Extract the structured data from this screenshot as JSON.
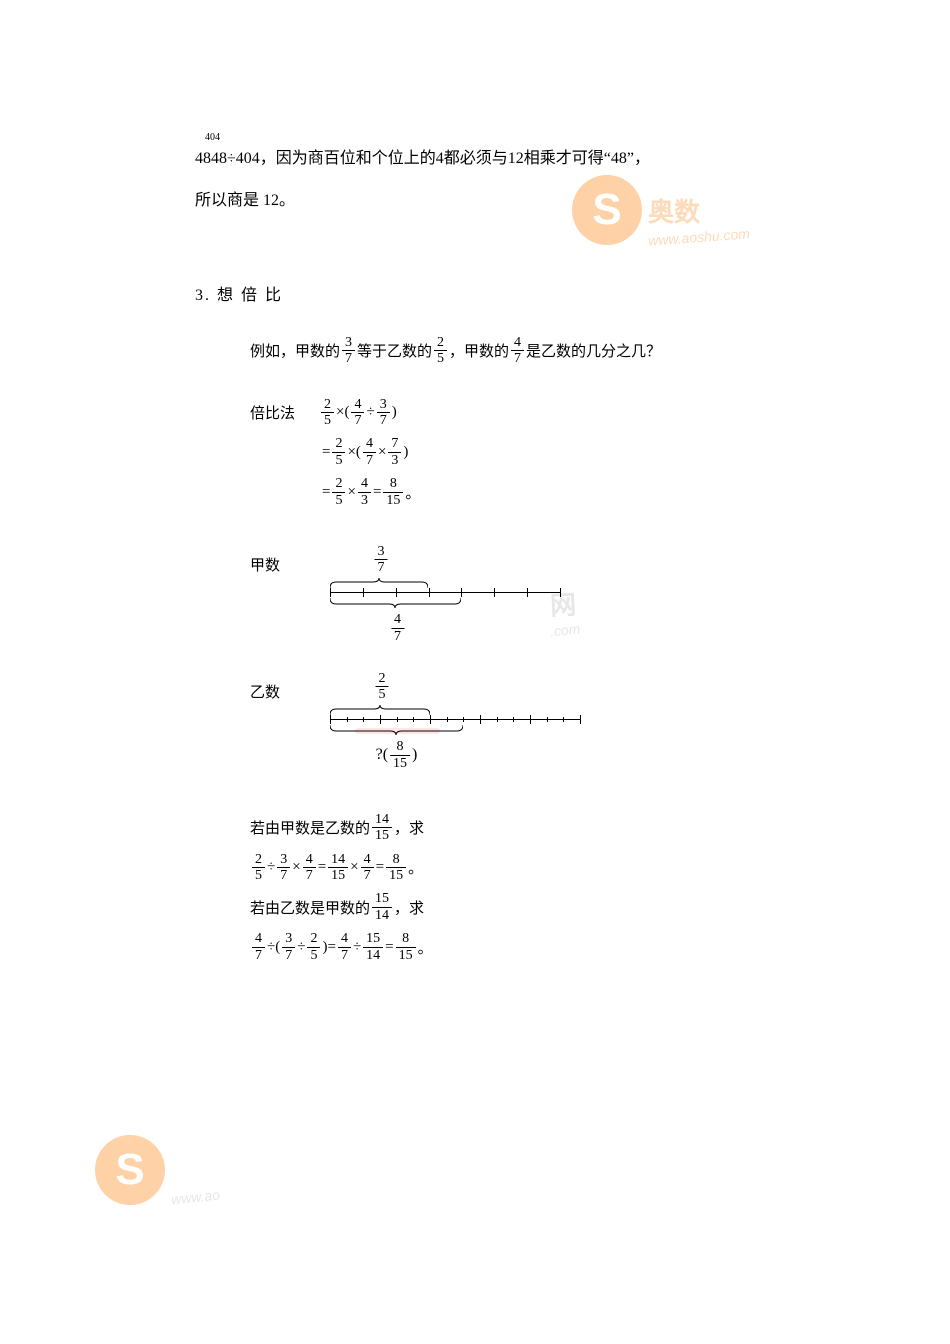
{
  "colors": {
    "text": "#000000",
    "bg": "#ffffff",
    "wm_orange": "#ffa54f",
    "wm_orange_text": "#f8b878",
    "wm_gray": "#d0d0d0",
    "underline_pink": "#ffc0c0"
  },
  "intro": {
    "sup": "404",
    "line1_a": "4848÷404，因为商百位和个位上的4都必须与12相乘才可得“48”，",
    "line2": "所以商是 12。"
  },
  "section": {
    "title": "3. 想 倍 比"
  },
  "example": {
    "prefix": "例如，甲数的",
    "f1": {
      "n": "3",
      "d": "7"
    },
    "mid1": "等于乙数的",
    "f2": {
      "n": "2",
      "d": "5"
    },
    "mid2": "，甲数的",
    "f3": {
      "n": "4",
      "d": "7"
    },
    "suffix": "是乙数的几分之几？"
  },
  "calc": {
    "label": "倍比法",
    "s1": {
      "a": {
        "n": "2",
        "d": "5"
      },
      "op1": "×(",
      "b": {
        "n": "4",
        "d": "7"
      },
      "op2": "÷",
      "c": {
        "n": "3",
        "d": "7"
      },
      "close": ")"
    },
    "s2": {
      "eq": "= ",
      "a": {
        "n": "2",
        "d": "5"
      },
      "op1": "×(",
      "b": {
        "n": "4",
        "d": "7"
      },
      "op2": "×",
      "c": {
        "n": "7",
        "d": "3"
      },
      "close": ")"
    },
    "s3": {
      "eq": "= ",
      "a": {
        "n": "2",
        "d": "5"
      },
      "op1": "×",
      "b": {
        "n": "4",
        "d": "3"
      },
      "op2": "= ",
      "c": {
        "n": "8",
        "d": "15"
      },
      "period": "。"
    }
  },
  "diag_jia": {
    "label": "甲数",
    "top_frac": {
      "n": "3",
      "d": "7"
    },
    "bot_frac": {
      "n": "4",
      "d": "7"
    },
    "ticks": 8,
    "total_width": 230,
    "top_span_ticks": 3,
    "bot_span_ticks": 4
  },
  "diag_yi": {
    "label": "乙数",
    "top_frac": {
      "n": "2",
      "d": "5"
    },
    "bot_prefix": "?(",
    "bot_frac": {
      "n": "8",
      "d": "15"
    },
    "bot_suffix": ")",
    "ticks_main": 6,
    "ticks_minor": 16,
    "total_width": 250,
    "top_span_ticks": 2,
    "bot_span_minor": 8
  },
  "alt": {
    "l1_a": "若由甲数是乙数的",
    "l1_f": {
      "n": "14",
      "d": "15"
    },
    "l1_b": "，求",
    "l2": {
      "a": {
        "n": "2",
        "d": "5"
      },
      "op1": "÷",
      "b": {
        "n": "3",
        "d": "7"
      },
      "op2": "×",
      "c": {
        "n": "4",
        "d": "7"
      },
      "eq1": "= ",
      "d": {
        "n": "14",
        "d": "15"
      },
      "op3": "×",
      "e": {
        "n": "4",
        "d": "7"
      },
      "eq2": "= ",
      "f": {
        "n": "8",
        "d": "15"
      },
      "p": "。"
    },
    "l3_a": "若由乙数是甲数的",
    "l3_f": {
      "n": "15",
      "d": "14"
    },
    "l3_b": "，求",
    "l4": {
      "a": {
        "n": "4",
        "d": "7"
      },
      "op1": "÷(",
      "b": {
        "n": "3",
        "d": "7"
      },
      "op2": "÷",
      "c": {
        "n": "2",
        "d": "5"
      },
      "close": ") ",
      "eq1": "= ",
      "d": {
        "n": "4",
        "d": "7"
      },
      "op3": "÷",
      "e": {
        "n": "15",
        "d": "14"
      },
      "eq2": "= ",
      "f": {
        "n": "8",
        "d": "15"
      },
      "p": "。"
    }
  },
  "watermarks": {
    "top": {
      "s": "S",
      "brand": "奥数",
      "url": "www.aoshu.com"
    },
    "mid": {
      "brand": "网",
      "url": ".com"
    },
    "bot": {
      "s": "S",
      "url": "www.ao"
    }
  }
}
